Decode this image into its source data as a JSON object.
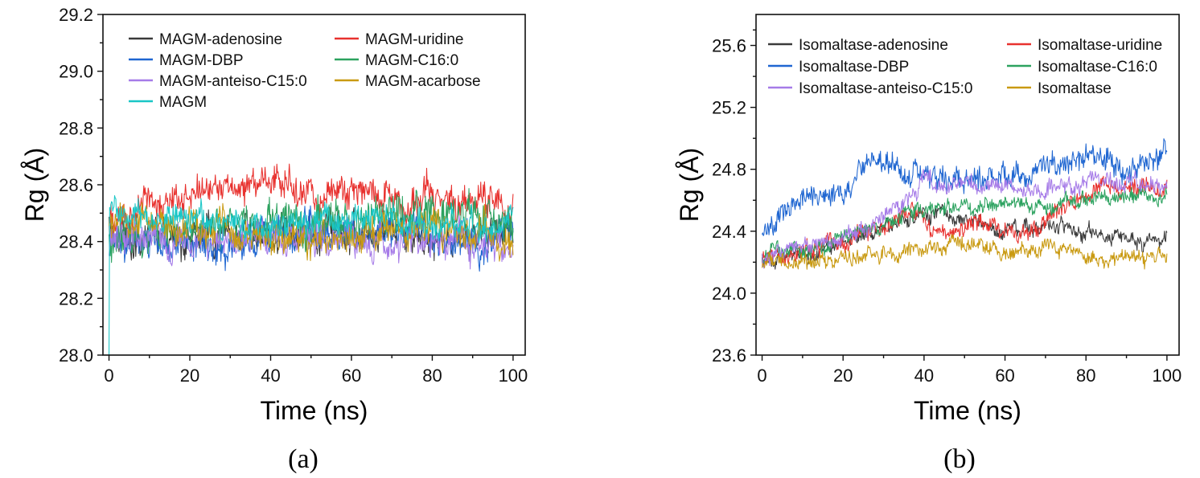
{
  "chart_data": [
    {
      "type": "line",
      "panel_label": "(a)",
      "xlabel": "Time (ns)",
      "ylabel": "Rg (Å)",
      "xlim": [
        -1.5,
        103
      ],
      "ylim": [
        28.0,
        29.2
      ],
      "xticks": [
        0,
        20,
        40,
        60,
        80,
        100
      ],
      "yticks": [
        28.0,
        28.2,
        28.4,
        28.6,
        28.8,
        29.0,
        29.2
      ],
      "ytick_labels": [
        "28.0",
        "28.2",
        "28.4",
        "28.6",
        "28.8",
        "29.0",
        "29.2"
      ],
      "legend_position": "top",
      "series": [
        {
          "name": "MAGM-adenosine",
          "color": "#3a3a3a",
          "mean": 28.42,
          "noise": 0.055,
          "trend": [
            [
              0,
              28.43
            ],
            [
              20,
              28.41
            ],
            [
              40,
              28.42
            ],
            [
              60,
              28.43
            ],
            [
              80,
              28.42
            ],
            [
              100,
              28.42
            ]
          ]
        },
        {
          "name": "MAGM-uridine",
          "color": "#e8312e",
          "mean": 28.54,
          "noise": 0.05,
          "trend": [
            [
              0,
              28.47
            ],
            [
              10,
              28.55
            ],
            [
              30,
              28.58
            ],
            [
              40,
              28.62
            ],
            [
              50,
              28.55
            ],
            [
              70,
              28.55
            ],
            [
              90,
              28.56
            ],
            [
              100,
              28.52
            ]
          ]
        },
        {
          "name": "MAGM-DBP",
          "color": "#1f66d1",
          "mean": 28.42,
          "noise": 0.055,
          "trend": [
            [
              0,
              28.4
            ],
            [
              20,
              28.38
            ],
            [
              40,
              28.42
            ],
            [
              60,
              28.43
            ],
            [
              80,
              28.42
            ],
            [
              100,
              28.4
            ]
          ]
        },
        {
          "name": "MAGM-C16:0",
          "color": "#2ca25f",
          "mean": 28.46,
          "noise": 0.06,
          "trend": [
            [
              0,
              28.42
            ],
            [
              20,
              28.44
            ],
            [
              40,
              28.46
            ],
            [
              60,
              28.46
            ],
            [
              80,
              28.5
            ],
            [
              100,
              28.46
            ]
          ]
        },
        {
          "name": "MAGM-anteiso-C15:0",
          "color": "#a67be8",
          "mean": 28.41,
          "noise": 0.05,
          "trend": [
            [
              0,
              28.4
            ],
            [
              20,
              28.4
            ],
            [
              40,
              28.42
            ],
            [
              60,
              28.4
            ],
            [
              80,
              28.39
            ],
            [
              100,
              28.4
            ]
          ]
        },
        {
          "name": "MAGM-acarbose",
          "color": "#c99a12",
          "mean": 28.43,
          "noise": 0.05,
          "trend": [
            [
              0,
              28.48
            ],
            [
              20,
              28.44
            ],
            [
              40,
              28.42
            ],
            [
              60,
              28.41
            ],
            [
              80,
              28.44
            ],
            [
              100,
              28.43
            ]
          ]
        },
        {
          "name": "MAGM",
          "color": "#19c6c6",
          "mean": 28.47,
          "noise": 0.045,
          "trend": [
            [
              0,
              28.5
            ],
            [
              20,
              28.49
            ],
            [
              40,
              28.46
            ],
            [
              60,
              28.47
            ],
            [
              80,
              28.46
            ],
            [
              100,
              28.46
            ]
          ],
          "start_value": 28.0
        }
      ]
    },
    {
      "type": "line",
      "panel_label": "(b)",
      "xlabel": "Time (ns)",
      "ylabel": "Rg (Å)",
      "xlim": [
        -1.5,
        103
      ],
      "ylim": [
        23.6,
        25.8
      ],
      "xticks": [
        0,
        20,
        40,
        60,
        80,
        100
      ],
      "yticks": [
        23.6,
        24.0,
        24.4,
        24.8,
        25.2,
        25.6
      ],
      "ytick_labels": [
        "23.6",
        "24.0",
        "24.4",
        "24.8",
        "25.2",
        "25.6"
      ],
      "legend_position": "top",
      "series": [
        {
          "name": "Isomaltase-adenosine",
          "color": "#3a3a3a",
          "mean": 24.4,
          "noise": 0.045,
          "trend": [
            [
              0,
              24.22
            ],
            [
              15,
              24.28
            ],
            [
              30,
              24.42
            ],
            [
              40,
              24.52
            ],
            [
              55,
              24.45
            ],
            [
              65,
              24.4
            ],
            [
              72,
              24.45
            ],
            [
              80,
              24.38
            ],
            [
              90,
              24.37
            ],
            [
              100,
              24.32
            ]
          ]
        },
        {
          "name": "Isomaltase-uridine",
          "color": "#e8312e",
          "mean": 24.45,
          "noise": 0.05,
          "trend": [
            [
              0,
              24.22
            ],
            [
              15,
              24.3
            ],
            [
              30,
              24.42
            ],
            [
              37,
              24.55
            ],
            [
              42,
              24.4
            ],
            [
              55,
              24.45
            ],
            [
              65,
              24.38
            ],
            [
              75,
              24.55
            ],
            [
              85,
              24.7
            ],
            [
              100,
              24.68
            ]
          ]
        },
        {
          "name": "Isomaltase-DBP",
          "color": "#1f66d1",
          "mean": 24.75,
          "noise": 0.07,
          "trend": [
            [
              0,
              24.4
            ],
            [
              10,
              24.58
            ],
            [
              20,
              24.65
            ],
            [
              26,
              24.82
            ],
            [
              35,
              24.78
            ],
            [
              45,
              24.75
            ],
            [
              55,
              24.72
            ],
            [
              65,
              24.75
            ],
            [
              80,
              24.85
            ],
            [
              90,
              24.78
            ],
            [
              100,
              24.9
            ]
          ]
        },
        {
          "name": "Isomaltase-C16:0",
          "color": "#2ca25f",
          "mean": 24.55,
          "noise": 0.045,
          "trend": [
            [
              0,
              24.24
            ],
            [
              15,
              24.3
            ],
            [
              30,
              24.45
            ],
            [
              40,
              24.55
            ],
            [
              55,
              24.58
            ],
            [
              70,
              24.55
            ],
            [
              80,
              24.62
            ],
            [
              90,
              24.62
            ],
            [
              100,
              24.62
            ]
          ]
        },
        {
          "name": "Isomaltase-anteiso-C15:0",
          "color": "#a67be8",
          "mean": 24.6,
          "noise": 0.05,
          "trend": [
            [
              0,
              24.22
            ],
            [
              15,
              24.33
            ],
            [
              25,
              24.4
            ],
            [
              35,
              24.58
            ],
            [
              40,
              24.72
            ],
            [
              55,
              24.7
            ],
            [
              70,
              24.68
            ],
            [
              85,
              24.74
            ],
            [
              100,
              24.68
            ]
          ]
        },
        {
          "name": "Isomaltase",
          "color": "#c99a12",
          "mean": 24.25,
          "noise": 0.045,
          "trend": [
            [
              0,
              24.18
            ],
            [
              20,
              24.22
            ],
            [
              40,
              24.28
            ],
            [
              50,
              24.32
            ],
            [
              60,
              24.25
            ],
            [
              70,
              24.3
            ],
            [
              80,
              24.22
            ],
            [
              100,
              24.25
            ]
          ]
        }
      ]
    }
  ]
}
